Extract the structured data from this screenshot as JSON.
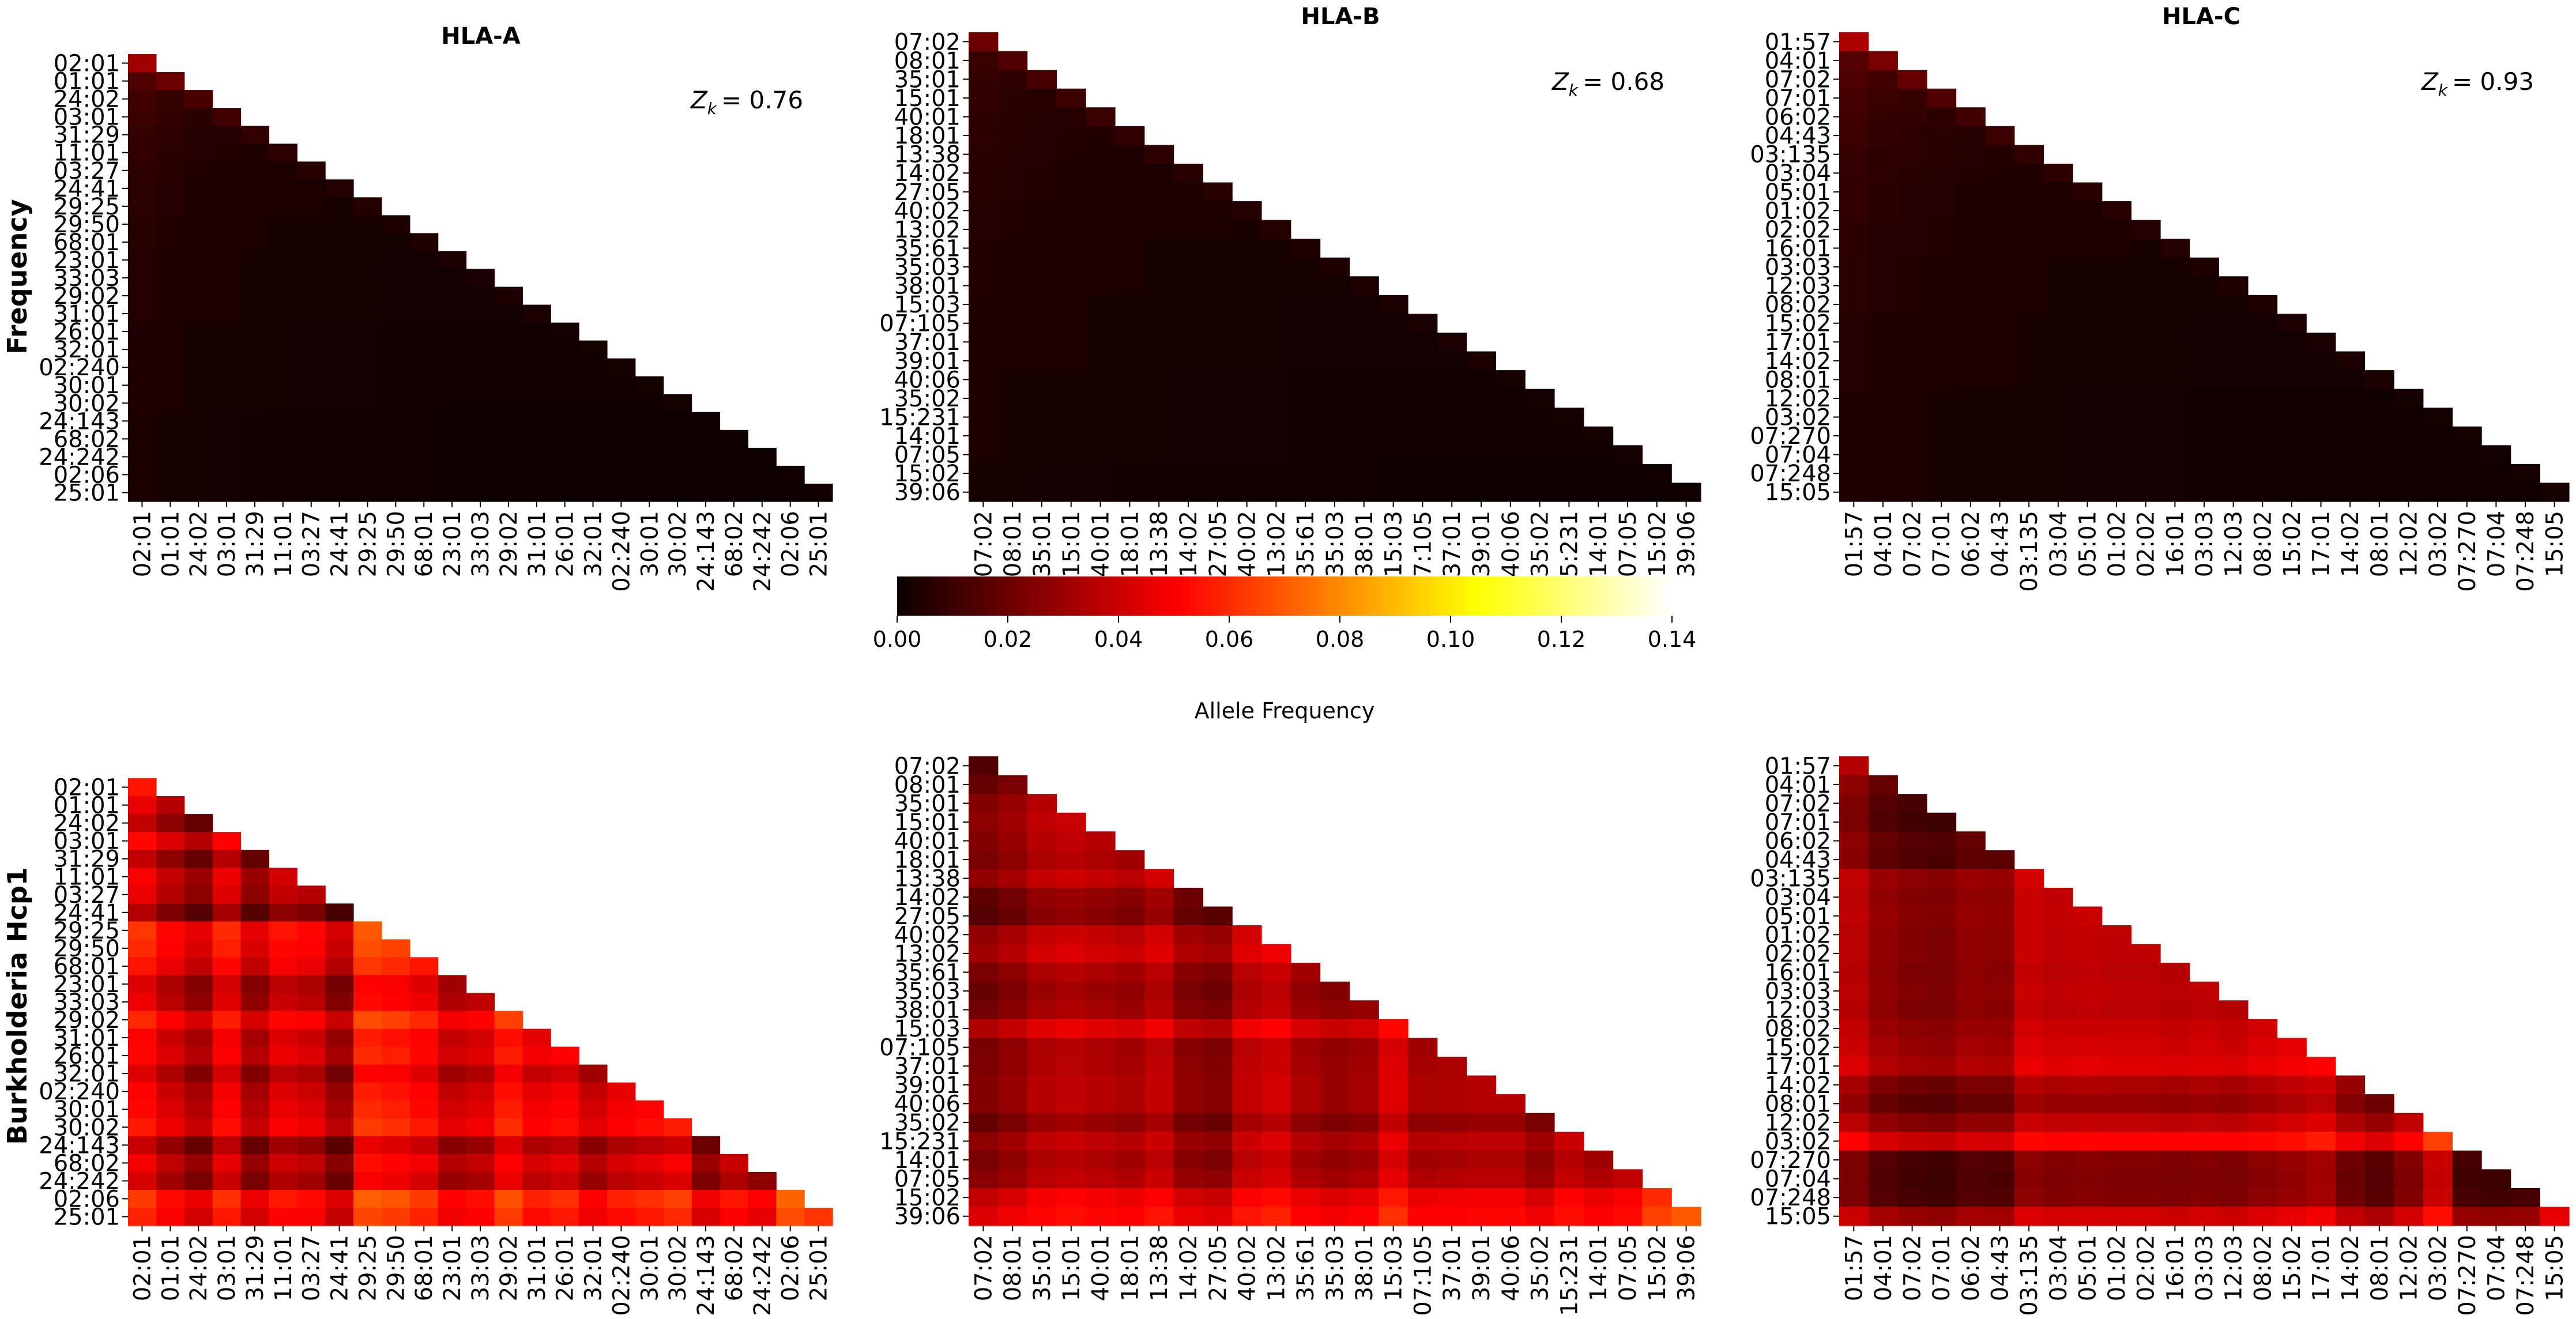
{
  "chart_data": {
    "type": "heatmap",
    "colormap": "hot",
    "column_titles": [
      "HLA-A",
      "HLA-B",
      "HLA-C"
    ],
    "row_titles": [
      "Frequency",
      "Burkholderia Hcp1"
    ],
    "colorbar": {
      "label": "Allele Frequency",
      "range": [
        0.0,
        0.14
      ],
      "ticks": [
        "0.00",
        "0.02",
        "0.04",
        "0.06",
        "0.08",
        "0.10",
        "0.12",
        "0.14"
      ]
    },
    "loci": [
      {
        "name": "HLA-A",
        "zk": "= 0.76",
        "alleles": [
          "02:01",
          "01:01",
          "24:02",
          "03:01",
          "31:29",
          "11:01",
          "03:27",
          "24:41",
          "29:25",
          "29:50",
          "68:01",
          "23:01",
          "33:03",
          "29:02",
          "31:01",
          "26:01",
          "32:01",
          "02:240",
          "30:01",
          "30:02",
          "24:143",
          "68:02",
          "24:242",
          "02:06",
          "25:01"
        ]
      },
      {
        "name": "HLA-B",
        "zk": "= 0.68",
        "alleles": [
          "07:02",
          "08:01",
          "35:01",
          "15:01",
          "40:01",
          "18:01",
          "13:38",
          "14:02",
          "27:05",
          "40:02",
          "13:02",
          "35:61",
          "35:03",
          "38:01",
          "15:03",
          "07:105",
          "37:01",
          "39:01",
          "40:06",
          "35:02",
          "15:231",
          "14:01",
          "07:05",
          "15:02",
          "39:06"
        ]
      },
      {
        "name": "HLA-C",
        "zk": "= 0.93",
        "alleles": [
          "01:57",
          "04:01",
          "07:02",
          "07:01",
          "06:02",
          "04:43",
          "03:135",
          "03:04",
          "05:01",
          "01:02",
          "02:02",
          "16:01",
          "03:03",
          "12:03",
          "08:02",
          "15:02",
          "17:01",
          "14:02",
          "08:01",
          "12:02",
          "03:02",
          "07:270",
          "07:04",
          "07:248",
          "15:05"
        ]
      }
    ],
    "frequency_diag": {
      "HLA-A": [
        0.03,
        0.02,
        0.013,
        0.011,
        0.008,
        0.007,
        0.006,
        0.005,
        0.005,
        0.004,
        0.004,
        0.003,
        0.003,
        0.003,
        0.003,
        0.002,
        0.002,
        0.002,
        0.002,
        0.002,
        0.001,
        0.001,
        0.001,
        0.001,
        0.001
      ],
      "HLA-B": [
        0.02,
        0.014,
        0.012,
        0.01,
        0.009,
        0.008,
        0.007,
        0.006,
        0.006,
        0.005,
        0.005,
        0.004,
        0.004,
        0.004,
        0.003,
        0.003,
        0.003,
        0.003,
        0.002,
        0.002,
        0.002,
        0.002,
        0.002,
        0.001,
        0.001
      ],
      "HLA-C": [
        0.032,
        0.022,
        0.018,
        0.014,
        0.011,
        0.01,
        0.008,
        0.007,
        0.006,
        0.006,
        0.005,
        0.005,
        0.004,
        0.004,
        0.004,
        0.003,
        0.003,
        0.003,
        0.003,
        0.002,
        0.002,
        0.002,
        0.002,
        0.002,
        0.002
      ]
    },
    "hcp1_allele_score": {
      "HLA-A": [
        0.055,
        0.034,
        0.018,
        0.05,
        0.018,
        0.04,
        0.034,
        0.012,
        0.07,
        0.065,
        0.055,
        0.03,
        0.036,
        0.064,
        0.044,
        0.05,
        0.03,
        0.044,
        0.05,
        0.057,
        0.02,
        0.038,
        0.026,
        0.072,
        0.062
      ],
      "HLA-B": [
        0.014,
        0.022,
        0.034,
        0.038,
        0.034,
        0.03,
        0.04,
        0.02,
        0.016,
        0.04,
        0.046,
        0.03,
        0.024,
        0.028,
        0.052,
        0.03,
        0.032,
        0.034,
        0.034,
        0.022,
        0.038,
        0.03,
        0.036,
        0.06,
        0.07
      ],
      "HLA-C": [
        0.034,
        0.018,
        0.012,
        0.01,
        0.018,
        0.016,
        0.04,
        0.036,
        0.038,
        0.036,
        0.036,
        0.034,
        0.036,
        0.034,
        0.04,
        0.044,
        0.05,
        0.028,
        0.02,
        0.036,
        0.064,
        0.012,
        0.01,
        0.012,
        0.044
      ]
    }
  }
}
